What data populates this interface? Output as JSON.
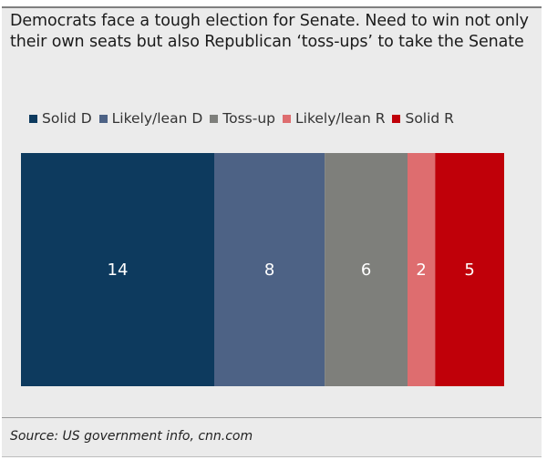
{
  "chart_data": {
    "type": "bar",
    "orientation": "horizontal-stacked",
    "title": "Democrats face a tough election for Senate. Need to win not only their own seats but also Republican ‘toss-ups’ to take the Senate",
    "categories": [
      "Solid D",
      "Likely/lean D",
      "Toss-up",
      "Likely/lean R",
      "Solid R"
    ],
    "values": [
      14,
      8,
      6,
      2,
      5
    ],
    "colors": [
      "#0d3a5e",
      "#4d6285",
      "#7e7f7b",
      "#de6d6f",
      "#c00009"
    ],
    "legend_position": "top",
    "source": "Source: US government info, cnn.com"
  }
}
